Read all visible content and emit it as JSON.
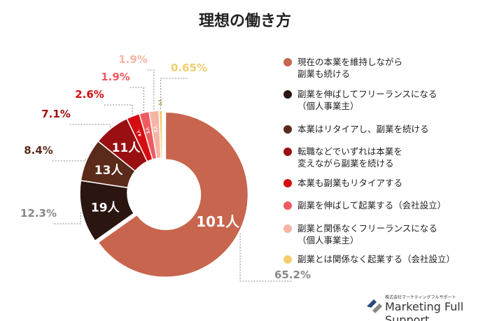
{
  "chart_data": {
    "type": "pie",
    "title": "理想の働き方",
    "unit": "人",
    "categories": [
      "現在の本業を維持しながら副業も続ける",
      "副業を伸ばしてフリーランスになる（個人事業主）",
      "本業はリタイアし、副業を続ける",
      "転職などでいずれは本業を変えながら副業を続ける",
      "本業も副業もリタイアする",
      "副業を伸ばして起業する（会社設立）",
      "副業と関係なくフリーランスになる（個人事業主）",
      "副業とは関係なく起業する（会社設立）"
    ],
    "legend_lines": [
      [
        "現在の本業を維持しながら",
        "副業も続ける"
      ],
      [
        "副業を伸ばしてフリーランスになる",
        "（個人事業主）"
      ],
      [
        "本業はリタイアし、副業を続ける"
      ],
      [
        "転職などでいずれは本業を",
        "変えながら副業を続ける"
      ],
      [
        "本業も副業もリタイアする"
      ],
      [
        "副業を伸ばして起業する（会社設立）"
      ],
      [
        "副業と関係なくフリーランスになる",
        "（個人事業主）"
      ],
      [
        "副業とは関係なく起業する（会社設立）"
      ]
    ],
    "values": [
      101,
      19,
      13,
      11,
      4,
      3,
      3,
      1
    ],
    "value_labels": [
      "101人",
      "19人",
      "13人",
      "11人",
      "4人",
      "3人",
      "3人",
      "1人"
    ],
    "percent_labels": [
      "65.2%",
      "12.3%",
      "8.4%",
      "7.1%",
      "2.6%",
      "1.9%",
      "1.9%",
      "0.65%"
    ],
    "colors": [
      "#c8654e",
      "#2a1511",
      "#5a2a1b",
      "#990f12",
      "#d40d10",
      "#ee5b60",
      "#f7b4a4",
      "#f3cd6e"
    ],
    "legend_position": "right"
  },
  "logo": {
    "company_jp": "株式会社マーケティングフルサポート",
    "company_en": "Marketing Full Support"
  }
}
